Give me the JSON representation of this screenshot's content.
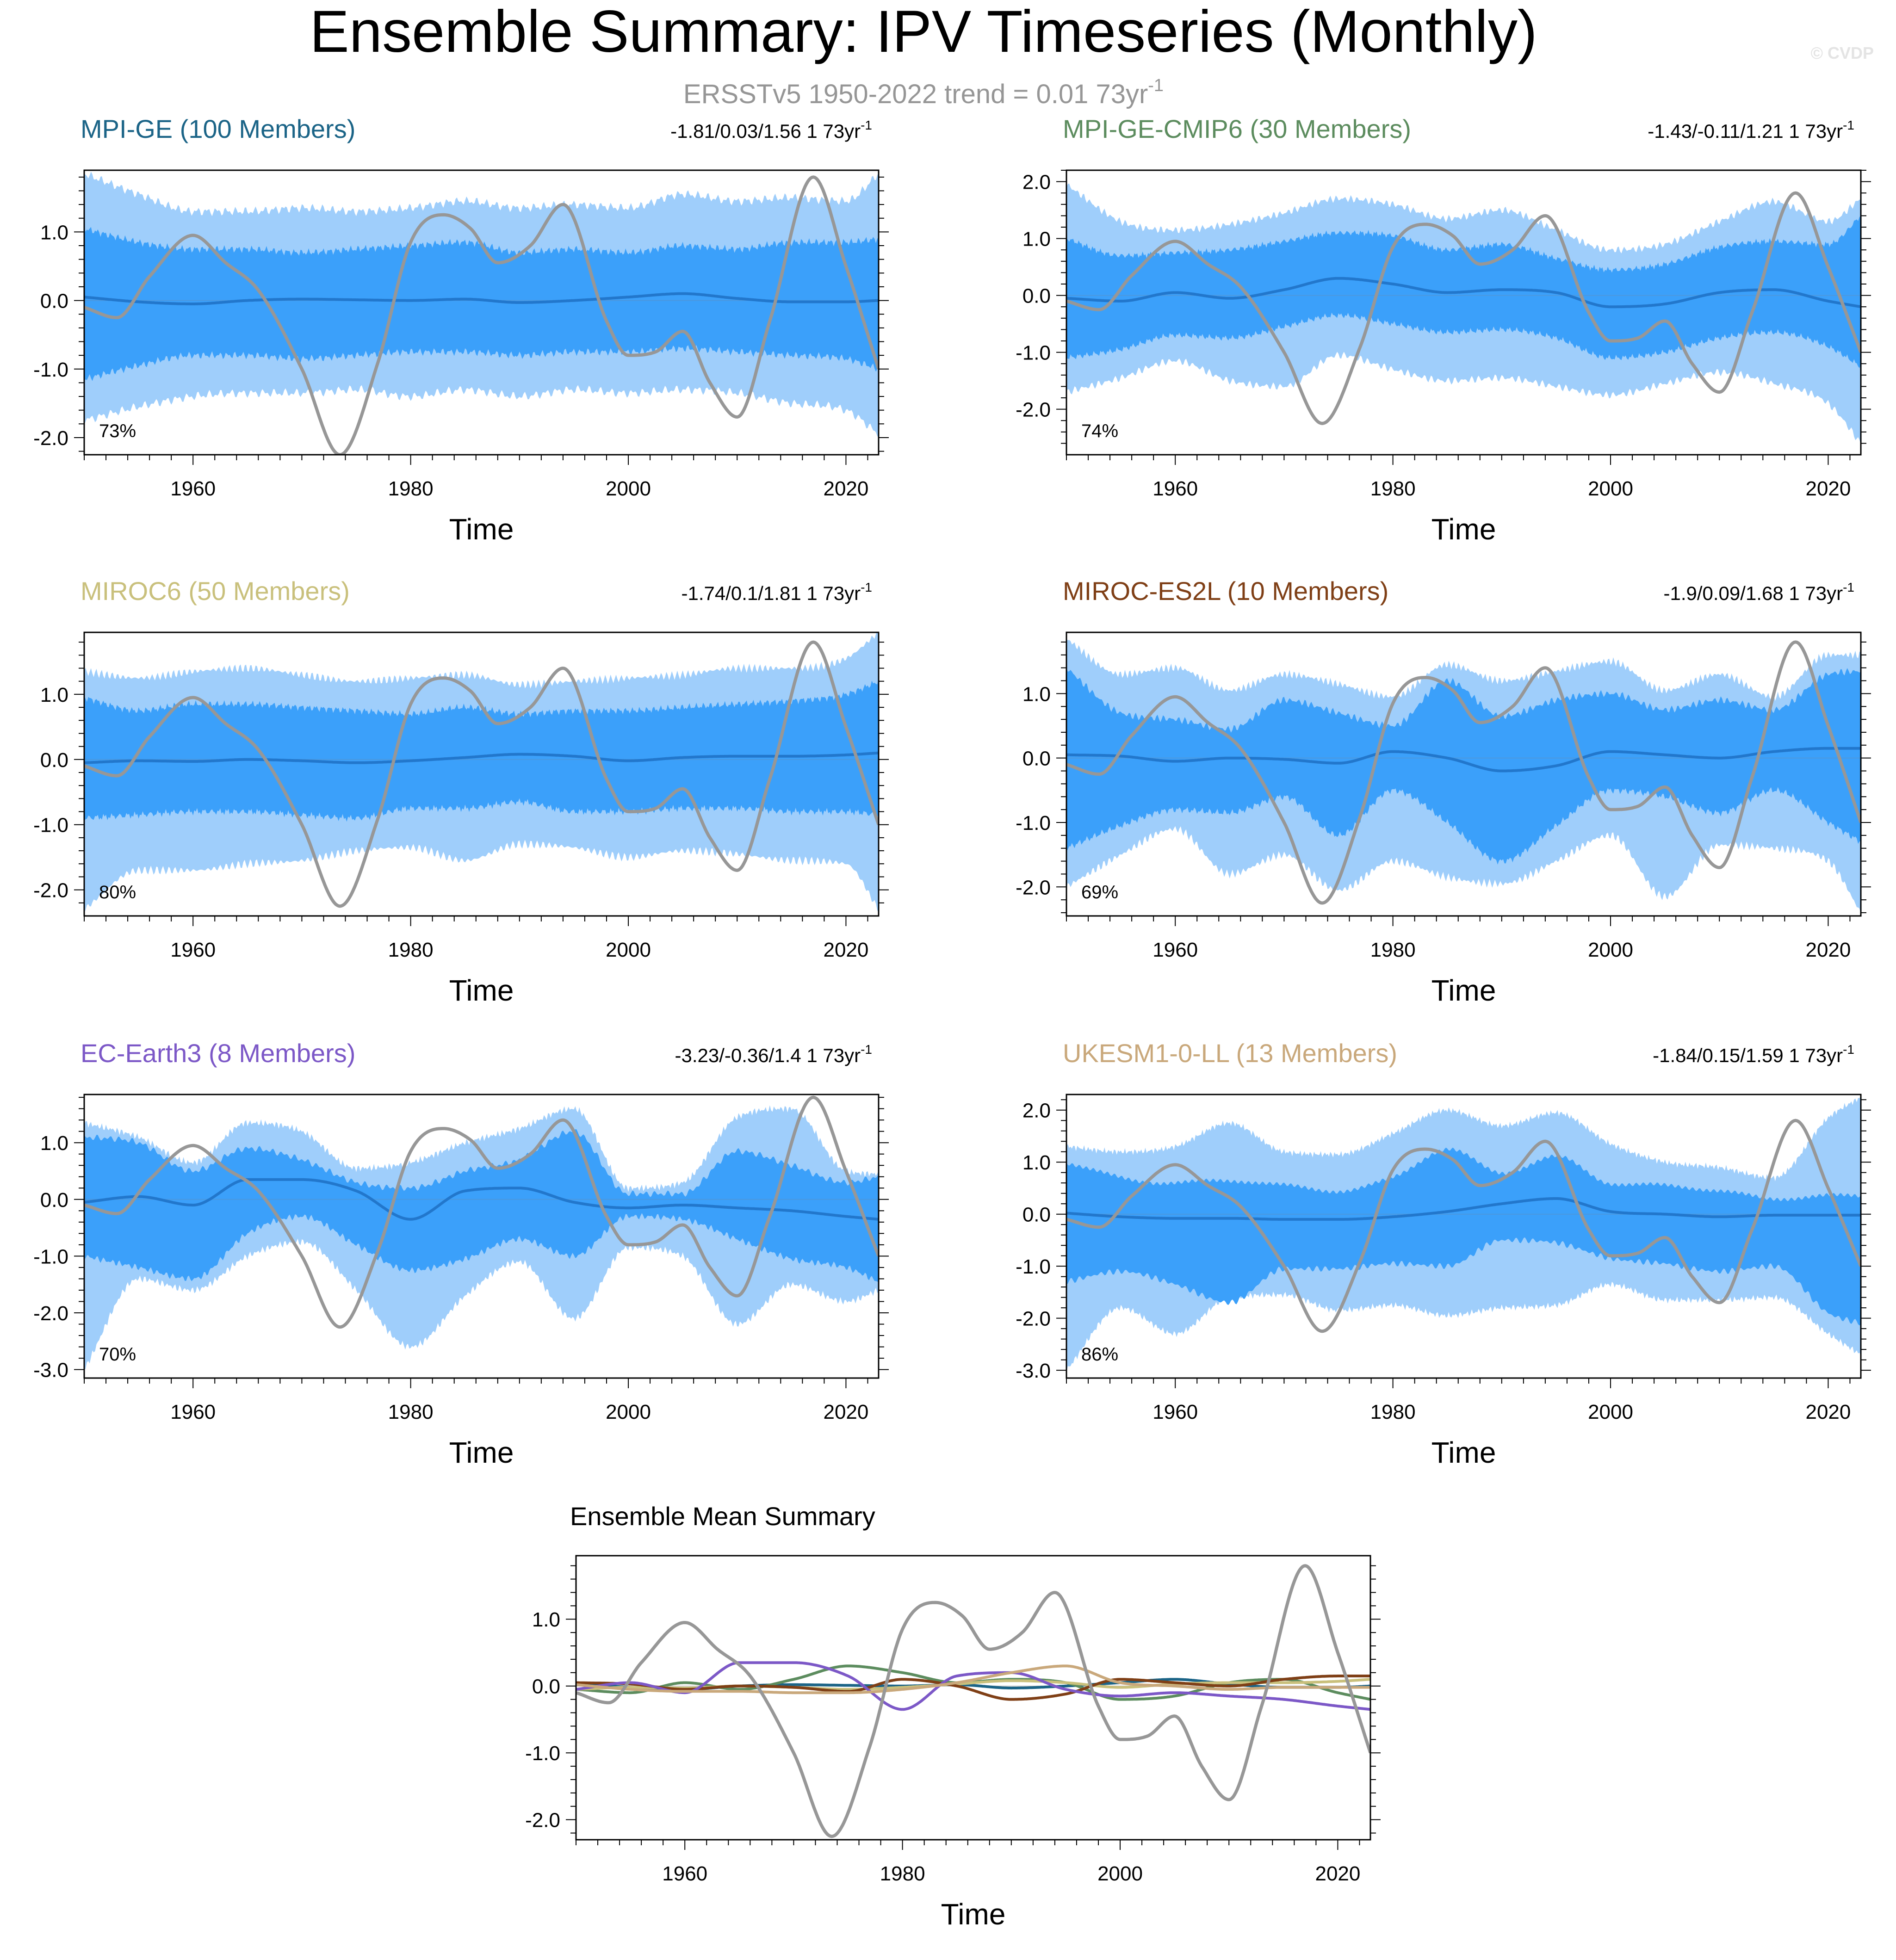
{
  "title": "Ensemble Summary: IPV Timeseries (Monthly)",
  "subtitle": "ERSSTv5 1950-2022 trend = 0.01 73yr",
  "subtitle_sup": "-1",
  "watermark": "© CVDP",
  "colors": {
    "outer_band": "#9fcefb",
    "inner_band": "#3ba0fa",
    "ensemble_mean": "#2277cc",
    "observations": "#979797",
    "axis": "#000000"
  },
  "chart_data": [
    {
      "id": "mpi-ge",
      "type": "area",
      "title": "MPI-GE (100 Members)",
      "title_color": "#1b6487",
      "trend_label": "-1.81/0.03/1.56 1 73yr",
      "trend_sup": "-1",
      "percent": "73%",
      "xlabel": "Time",
      "xlim": [
        1950,
        2023
      ],
      "ylim": [
        -2.25,
        1.9
      ],
      "yticks": [
        1.0,
        0.0,
        -1.0,
        -2.0
      ],
      "ytick_labels": [
        "1.0",
        "0.0",
        "-1.0",
        "-2.0"
      ],
      "xticks": [
        1960,
        1980,
        2000,
        2020
      ],
      "xtick_labels": [
        "1960",
        "1980",
        "2000",
        "2020"
      ],
      "anchors": {
        "x": [
          1950,
          1955,
          1960,
          1965,
          1970,
          1975,
          1980,
          1985,
          1990,
          1995,
          2000,
          2005,
          2010,
          2015,
          2020,
          2023
        ],
        "outer_hi": [
          1.85,
          1.55,
          1.3,
          1.3,
          1.35,
          1.3,
          1.35,
          1.45,
          1.35,
          1.4,
          1.35,
          1.55,
          1.45,
          1.5,
          1.45,
          1.85
        ],
        "inner_hi": [
          1.05,
          0.85,
          0.75,
          0.75,
          0.7,
          0.75,
          0.8,
          0.85,
          0.7,
          0.75,
          0.7,
          0.8,
          0.75,
          0.85,
          0.85,
          0.9
        ],
        "mean": [
          0.05,
          -0.02,
          -0.05,
          0.0,
          0.02,
          0.01,
          0.0,
          0.02,
          -0.03,
          0.0,
          0.05,
          0.1,
          0.03,
          -0.02,
          -0.02,
          0.0
        ],
        "inner_lo": [
          -1.15,
          -0.95,
          -0.8,
          -0.8,
          -0.85,
          -0.8,
          -0.75,
          -0.75,
          -0.8,
          -0.75,
          -0.75,
          -0.7,
          -0.75,
          -0.8,
          -0.85,
          -1.0
        ],
        "outer_lo": [
          -1.75,
          -1.55,
          -1.4,
          -1.35,
          -1.35,
          -1.3,
          -1.4,
          -1.3,
          -1.4,
          -1.3,
          -1.35,
          -1.3,
          -1.35,
          -1.5,
          -1.6,
          -1.95
        ]
      }
    },
    {
      "id": "mpi-ge-cmip6",
      "type": "area",
      "title": "MPI-GE-CMIP6 (30 Members)",
      "title_color": "#5c8c5e",
      "trend_label": "-1.43/-0.11/1.21 1 73yr",
      "trend_sup": "-1",
      "percent": "74%",
      "xlabel": "Time",
      "xlim": [
        1950,
        2023
      ],
      "ylim": [
        -2.8,
        2.2
      ],
      "yticks": [
        2.0,
        1.0,
        0.0,
        -1.0,
        -2.0
      ],
      "ytick_labels": [
        "2.0",
        "1.0",
        "0.0",
        "-1.0",
        "-2.0"
      ],
      "xticks": [
        1960,
        1980,
        2000,
        2020
      ],
      "xtick_labels": [
        "1960",
        "1980",
        "2000",
        "2020"
      ],
      "anchors": {
        "x": [
          1950,
          1955,
          1960,
          1965,
          1970,
          1975,
          1980,
          1985,
          1990,
          1995,
          2000,
          2005,
          2010,
          2015,
          2020,
          2023
        ],
        "outer_hi": [
          1.95,
          1.3,
          1.15,
          1.25,
          1.45,
          1.7,
          1.6,
          1.35,
          1.5,
          1.15,
          0.8,
          0.9,
          1.3,
          1.65,
          1.3,
          1.7
        ],
        "inner_hi": [
          1.0,
          0.7,
          0.75,
          0.8,
          0.95,
          1.1,
          1.05,
          0.8,
          0.9,
          0.65,
          0.45,
          0.55,
          0.85,
          0.95,
          0.9,
          1.4
        ],
        "mean": [
          -0.05,
          -0.1,
          0.05,
          -0.05,
          0.1,
          0.3,
          0.2,
          0.05,
          0.1,
          0.05,
          -0.2,
          -0.15,
          0.05,
          0.1,
          -0.1,
          -0.2
        ],
        "inner_lo": [
          -1.1,
          -0.95,
          -0.7,
          -0.75,
          -0.55,
          -0.35,
          -0.5,
          -0.65,
          -0.6,
          -0.75,
          -1.1,
          -1.0,
          -0.75,
          -0.65,
          -0.9,
          -1.25
        ],
        "outer_lo": [
          -1.7,
          -1.45,
          -1.15,
          -1.5,
          -1.6,
          -1.05,
          -1.3,
          -1.5,
          -1.45,
          -1.6,
          -1.75,
          -1.55,
          -1.35,
          -1.55,
          -1.9,
          -2.6
        ]
      }
    },
    {
      "id": "miroc6",
      "type": "area",
      "title": "MIROC6 (50 Members)",
      "title_color": "#c9c07c",
      "trend_label": "-1.74/0.1/1.81 1 73yr",
      "trend_sup": "-1",
      "percent": "80%",
      "xlabel": "Time",
      "xlim": [
        1950,
        2023
      ],
      "ylim": [
        -2.4,
        1.95
      ],
      "yticks": [
        1.0,
        0.0,
        -1.0,
        -2.0
      ],
      "ytick_labels": [
        "1.0",
        "0.0",
        "-1.0",
        "-2.0"
      ],
      "xticks": [
        1960,
        1980,
        2000,
        2020
      ],
      "xtick_labels": [
        "1960",
        "1980",
        "2000",
        "2020"
      ],
      "anchors": {
        "x": [
          1950,
          1955,
          1960,
          1965,
          1970,
          1975,
          1980,
          1985,
          1990,
          1995,
          2000,
          2005,
          2010,
          2015,
          2020,
          2023
        ],
        "outer_hi": [
          1.35,
          1.25,
          1.35,
          1.4,
          1.3,
          1.2,
          1.25,
          1.3,
          1.15,
          1.2,
          1.25,
          1.3,
          1.4,
          1.4,
          1.55,
          1.95
        ],
        "inner_hi": [
          0.95,
          0.75,
          0.85,
          0.85,
          0.8,
          0.75,
          0.7,
          0.8,
          0.7,
          0.75,
          0.75,
          0.8,
          0.85,
          0.9,
          1.0,
          1.2
        ],
        "mean": [
          -0.05,
          -0.02,
          -0.03,
          0.0,
          -0.02,
          -0.05,
          -0.02,
          0.03,
          0.08,
          0.05,
          -0.02,
          0.03,
          0.05,
          0.05,
          0.07,
          0.1
        ],
        "inner_lo": [
          -0.9,
          -0.85,
          -0.8,
          -0.8,
          -0.85,
          -0.9,
          -0.75,
          -0.75,
          -0.65,
          -0.8,
          -0.8,
          -0.75,
          -0.75,
          -0.8,
          -0.8,
          -0.85
        ],
        "outer_lo": [
          -2.3,
          -1.7,
          -1.7,
          -1.6,
          -1.55,
          -1.4,
          -1.35,
          -1.55,
          -1.3,
          -1.35,
          -1.5,
          -1.4,
          -1.45,
          -1.55,
          -1.6,
          -2.3
        ]
      }
    },
    {
      "id": "miroc-es2l",
      "type": "area",
      "title": "MIROC-ES2L (10 Members)",
      "title_color": "#7f3f16",
      "trend_label": "-1.9/0.09/1.68 1 73yr",
      "trend_sup": "-1",
      "percent": "69%",
      "xlabel": "Time",
      "xlim": [
        1950,
        2023
      ],
      "ylim": [
        -2.45,
        1.95
      ],
      "yticks": [
        1.0,
        0.0,
        -1.0,
        -2.0
      ],
      "ytick_labels": [
        "1.0",
        "0.0",
        "-1.0",
        "-2.0"
      ],
      "xticks": [
        1960,
        1980,
        2000,
        2020
      ],
      "xtick_labels": [
        "1960",
        "1980",
        "2000",
        "2020"
      ],
      "anchors": {
        "x": [
          1950,
          1955,
          1960,
          1965,
          1970,
          1975,
          1980,
          1985,
          1990,
          1995,
          2000,
          2005,
          2010,
          2015,
          2020,
          2023
        ],
        "outer_hi": [
          1.85,
          1.3,
          1.4,
          1.05,
          1.3,
          1.15,
          0.95,
          1.45,
          1.2,
          1.35,
          1.5,
          1.05,
          1.3,
          0.95,
          1.6,
          1.6
        ],
        "inner_hi": [
          1.4,
          0.7,
          0.6,
          0.45,
          0.9,
          0.7,
          0.5,
          1.2,
          0.65,
          0.9,
          1.0,
          0.75,
          0.9,
          0.75,
          1.3,
          1.35
        ],
        "mean": [
          0.05,
          0.03,
          -0.05,
          0.0,
          -0.02,
          -0.08,
          0.1,
          0.0,
          -0.2,
          -0.12,
          0.1,
          0.05,
          0.0,
          0.1,
          0.15,
          0.15
        ],
        "inner_lo": [
          -1.4,
          -1.05,
          -0.8,
          -0.85,
          -0.6,
          -1.2,
          -0.5,
          -1.0,
          -1.6,
          -1.05,
          -0.5,
          -0.6,
          -0.85,
          -0.5,
          -1.0,
          -1.3
        ],
        "outer_lo": [
          -2.0,
          -1.5,
          -1.1,
          -1.8,
          -1.5,
          -2.05,
          -1.6,
          -1.85,
          -1.95,
          -1.6,
          -1.2,
          -2.15,
          -1.35,
          -1.4,
          -1.6,
          -2.4
        ]
      }
    },
    {
      "id": "ec-earth3",
      "type": "area",
      "title": "EC-Earth3 (8 Members)",
      "title_color": "#7c58c7",
      "trend_label": "-3.23/-0.36/1.4 1 73yr",
      "trend_sup": "-1",
      "percent": "70%",
      "xlabel": "Time",
      "xlim": [
        1950,
        2023
      ],
      "ylim": [
        -3.15,
        1.85
      ],
      "yticks": [
        1.0,
        0.0,
        -1.0,
        -2.0,
        -3.0
      ],
      "ytick_labels": [
        "1.0",
        "0.0",
        "-1.0",
        "-2.0",
        "-3.0"
      ],
      "xticks": [
        1960,
        1980,
        2000,
        2020
      ],
      "xtick_labels": [
        "1960",
        "1980",
        "2000",
        "2020"
      ],
      "anchors": {
        "x": [
          1950,
          1955,
          1960,
          1965,
          1970,
          1975,
          1980,
          1985,
          1990,
          1995,
          2000,
          2005,
          2010,
          2015,
          2020,
          2023
        ],
        "outer_hi": [
          1.35,
          1.1,
          0.65,
          1.35,
          1.2,
          0.55,
          0.65,
          1.0,
          1.25,
          1.6,
          0.2,
          0.3,
          1.45,
          1.6,
          0.5,
          0.45
        ],
        "inner_hi": [
          1.1,
          1.0,
          0.5,
          0.9,
          0.7,
          0.3,
          0.2,
          0.5,
          0.7,
          1.2,
          0.1,
          0.1,
          0.85,
          0.6,
          0.3,
          0.4
        ],
        "mean": [
          -0.05,
          0.05,
          -0.1,
          0.35,
          0.35,
          0.15,
          -0.35,
          0.15,
          0.2,
          -0.05,
          -0.15,
          -0.1,
          -0.15,
          -0.2,
          -0.3,
          -0.35
        ],
        "inner_lo": [
          -1.0,
          -1.2,
          -1.4,
          -0.6,
          -0.3,
          -0.8,
          -1.25,
          -1.05,
          -0.7,
          -1.0,
          -0.3,
          -0.35,
          -0.7,
          -1.05,
          -1.2,
          -1.45
        ],
        "outer_lo": [
          -3.0,
          -1.4,
          -1.6,
          -1.0,
          -0.75,
          -1.6,
          -2.6,
          -1.7,
          -1.1,
          -2.1,
          -0.85,
          -1.0,
          -2.2,
          -1.5,
          -1.8,
          -1.6
        ]
      }
    },
    {
      "id": "ukesm1-0-ll",
      "type": "area",
      "title": "UKESM1-0-LL (13 Members)",
      "title_color": "#c9a87b",
      "trend_label": "-1.84/0.15/1.59 1 73yr",
      "trend_sup": "-1",
      "percent": "86%",
      "xlabel": "Time",
      "xlim": [
        1950,
        2023
      ],
      "ylim": [
        -3.15,
        2.3
      ],
      "yticks": [
        2.0,
        1.0,
        0.0,
        -1.0,
        -2.0,
        -3.0
      ],
      "ytick_labels": [
        "2.0",
        "1.0",
        "0.0",
        "-1.0",
        "-2.0",
        "-3.0"
      ],
      "xticks": [
        1960,
        1980,
        2000,
        2020
      ],
      "xtick_labels": [
        "1960",
        "1980",
        "2000",
        "2020"
      ],
      "anchors": {
        "x": [
          1950,
          1955,
          1960,
          1965,
          1970,
          1975,
          1980,
          1985,
          1990,
          1995,
          2000,
          2005,
          2010,
          2015,
          2020,
          2023
        ],
        "outer_hi": [
          1.3,
          1.2,
          1.3,
          1.75,
          1.2,
          1.15,
          1.55,
          2.0,
          1.7,
          1.95,
          1.35,
          1.0,
          0.9,
          0.7,
          1.85,
          2.25
        ],
        "inner_hi": [
          1.0,
          0.7,
          0.6,
          0.65,
          0.55,
          0.45,
          0.7,
          1.25,
          0.8,
          1.1,
          0.6,
          0.55,
          0.45,
          0.3,
          0.35,
          0.35
        ],
        "mean": [
          0.02,
          -0.05,
          -0.08,
          -0.08,
          -0.1,
          -0.1,
          -0.05,
          0.05,
          0.2,
          0.3,
          0.05,
          0.0,
          -0.05,
          -0.02,
          -0.02,
          -0.02
        ],
        "inner_lo": [
          -1.3,
          -1.1,
          -1.35,
          -1.7,
          -1.05,
          -1.05,
          -0.95,
          -1.0,
          -0.5,
          -0.55,
          -0.85,
          -0.95,
          -1.1,
          -1.0,
          -1.9,
          -2.1
        ],
        "outer_lo": [
          -3.0,
          -1.8,
          -2.3,
          -1.6,
          -1.55,
          -1.85,
          -1.75,
          -1.95,
          -1.8,
          -1.75,
          -1.35,
          -1.65,
          -1.65,
          -1.6,
          -2.3,
          -2.7
        ]
      }
    },
    {
      "id": "ensemble-mean-summary",
      "type": "line",
      "title": "Ensemble Mean Summary",
      "title_color": "#000000",
      "xlabel": "Time",
      "xlim": [
        1950,
        2023
      ],
      "ylim": [
        -2.3,
        1.95
      ],
      "yticks": [
        1.0,
        0.0,
        -1.0,
        -2.0
      ],
      "ytick_labels": [
        "1.0",
        "0.0",
        "-1.0",
        "-2.0"
      ],
      "xticks": [
        1960,
        1980,
        2000,
        2020
      ],
      "xtick_labels": [
        "1960",
        "1980",
        "2000",
        "2020"
      ],
      "series_from_panels": [
        "mpi-ge",
        "mpi-ge-cmip6",
        "miroc6",
        "miroc-es2l",
        "ec-earth3",
        "ukesm1-0-ll"
      ],
      "observations_series": "ERSSTv5"
    }
  ],
  "observations": {
    "name": "ERSSTv5",
    "x": [
      1950,
      1953,
      1956,
      1960,
      1963,
      1966,
      1970,
      1973.5,
      1977,
      1980,
      1983,
      1985.5,
      1988,
      1991,
      1994,
      1998,
      2000,
      2002.5,
      2005,
      2007.5,
      2010,
      2013,
      2017,
      2020,
      2023
    ],
    "y": [
      -0.1,
      -0.25,
      0.35,
      0.95,
      0.55,
      0.15,
      -1.0,
      -2.25,
      -0.9,
      0.85,
      1.25,
      1.05,
      0.55,
      0.8,
      1.4,
      -0.3,
      -0.8,
      -0.75,
      -0.45,
      -1.2,
      -1.7,
      -0.3,
      1.8,
      0.5,
      -1.0
    ]
  }
}
